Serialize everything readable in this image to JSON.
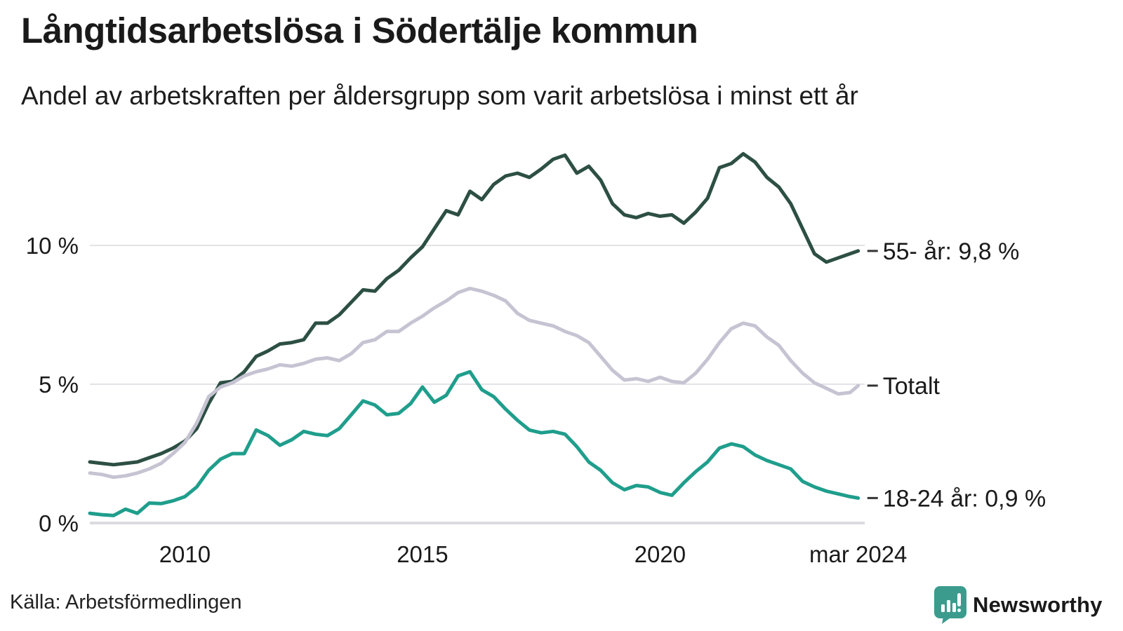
{
  "header": {
    "title": "Långtidsarbetslösa i Södertälje kommun",
    "subtitle": "Andel av arbetskraften per åldersgrupp som varit arbetslösa i minst ett år"
  },
  "footer": {
    "source": "Källa: Arbetsförmedlingen",
    "brand": "Newsworthy",
    "brand_color": "#3b9c8e"
  },
  "chart_data": {
    "type": "line",
    "title": "Långtidsarbetslösa i Södertälje kommun",
    "subtitle": "Andel av arbetskraften per åldersgrupp som varit arbetslösa i minst ett år",
    "unit": "%",
    "grid": true,
    "grid_color": "#e4e4e8",
    "axis_color": "#dcdce0",
    "text_color": "#1a1a1a",
    "legend_position": "right-end-labels",
    "x_axis": {
      "range": [
        2008.0,
        2024.25
      ],
      "ticks": [
        {
          "value": 2010,
          "label": "2010"
        },
        {
          "value": 2015,
          "label": "2015"
        },
        {
          "value": 2020,
          "label": "2020"
        },
        {
          "value": 2024.17,
          "label": "mar 2024"
        }
      ]
    },
    "y_axis": {
      "range": [
        0,
        13.8
      ],
      "ticks": [
        {
          "value": 0,
          "label": "0 %"
        },
        {
          "value": 5,
          "label": "5 %"
        },
        {
          "value": 10,
          "label": "10 %"
        }
      ]
    },
    "x": [
      2008,
      2008.25,
      2008.5,
      2008.75,
      2009,
      2009.25,
      2009.5,
      2009.75,
      2010,
      2010.25,
      2010.5,
      2010.75,
      2011,
      2011.25,
      2011.5,
      2011.75,
      2012,
      2012.25,
      2012.5,
      2012.75,
      2013,
      2013.25,
      2013.5,
      2013.75,
      2014,
      2014.25,
      2014.5,
      2014.75,
      2015,
      2015.25,
      2015.5,
      2015.75,
      2016,
      2016.25,
      2016.5,
      2016.75,
      2017,
      2017.25,
      2017.5,
      2017.75,
      2018,
      2018.25,
      2018.5,
      2018.75,
      2019,
      2019.25,
      2019.5,
      2019.75,
      2020,
      2020.25,
      2020.5,
      2020.75,
      2021,
      2021.25,
      2021.5,
      2021.75,
      2022,
      2022.25,
      2022.5,
      2022.75,
      2023,
      2023.25,
      2023.5,
      2023.75,
      2024,
      2024.17
    ],
    "series": [
      {
        "name": "55- år",
        "slug": "55-ar",
        "label": "55- år: 9,8 %",
        "last_value_text": "9,8 %",
        "color": "#2d4f44",
        "values": [
          2.2,
          2.15,
          2.1,
          2.15,
          2.2,
          2.35,
          2.5,
          2.7,
          2.95,
          3.4,
          4.3,
          5.05,
          5.1,
          5.45,
          6.0,
          6.2,
          6.45,
          6.5,
          6.6,
          7.2,
          7.2,
          7.5,
          7.95,
          8.4,
          8.35,
          8.8,
          9.1,
          9.55,
          9.95,
          10.6,
          11.25,
          11.1,
          11.95,
          11.65,
          12.2,
          12.5,
          12.6,
          12.45,
          12.75,
          13.1,
          13.25,
          12.6,
          12.85,
          12.35,
          11.5,
          11.1,
          11.0,
          11.15,
          11.05,
          11.1,
          10.8,
          11.2,
          11.7,
          12.8,
          12.95,
          13.3,
          13.0,
          12.45,
          12.1,
          11.5,
          10.6,
          9.7,
          9.4,
          9.55,
          9.7,
          9.8
        ]
      },
      {
        "name": "Totalt",
        "slug": "totalt",
        "label": "Totalt",
        "last_value_text": "",
        "color": "#c6c3d2",
        "values": [
          1.8,
          1.75,
          1.65,
          1.7,
          1.8,
          1.95,
          2.15,
          2.5,
          2.9,
          3.6,
          4.55,
          4.9,
          5.05,
          5.3,
          5.45,
          5.55,
          5.7,
          5.65,
          5.75,
          5.9,
          5.95,
          5.85,
          6.1,
          6.5,
          6.6,
          6.9,
          6.9,
          7.2,
          7.45,
          7.75,
          8.0,
          8.3,
          8.45,
          8.35,
          8.2,
          8.0,
          7.55,
          7.3,
          7.2,
          7.1,
          6.9,
          6.75,
          6.5,
          6.0,
          5.5,
          5.15,
          5.2,
          5.1,
          5.25,
          5.1,
          5.05,
          5.4,
          5.9,
          6.5,
          7.0,
          7.2,
          7.1,
          6.7,
          6.4,
          5.85,
          5.4,
          5.05,
          4.85,
          4.65,
          4.7,
          4.95
        ]
      },
      {
        "name": "18-24 år",
        "slug": "18-24-ar",
        "label": "18-24 år: 0,9 %",
        "last_value_text": "0,9 %",
        "color": "#1f9e8c",
        "values": [
          0.35,
          0.3,
          0.27,
          0.5,
          0.35,
          0.72,
          0.7,
          0.8,
          0.95,
          1.3,
          1.9,
          2.3,
          2.5,
          2.5,
          3.35,
          3.15,
          2.8,
          3.0,
          3.3,
          3.2,
          3.15,
          3.4,
          3.9,
          4.4,
          4.25,
          3.9,
          3.95,
          4.3,
          4.9,
          4.35,
          4.6,
          5.3,
          5.45,
          4.8,
          4.55,
          4.1,
          3.7,
          3.35,
          3.25,
          3.3,
          3.2,
          2.75,
          2.2,
          1.9,
          1.45,
          1.2,
          1.35,
          1.3,
          1.1,
          1.0,
          1.45,
          1.85,
          2.2,
          2.7,
          2.85,
          2.75,
          2.45,
          2.25,
          2.1,
          1.95,
          1.5,
          1.3,
          1.15,
          1.05,
          0.95,
          0.9
        ]
      }
    ]
  }
}
